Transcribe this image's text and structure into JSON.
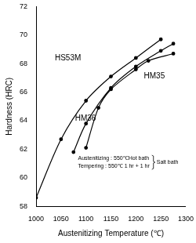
{
  "chart_data": {
    "type": "line",
    "x_label": "Austenitizing Temperature (℃)",
    "y_label": "Hardness (HRC)",
    "xlim": [
      1000,
      1300
    ],
    "xticks": [
      1000,
      1050,
      1100,
      1150,
      1200,
      1250,
      1300
    ],
    "ylim": [
      58,
      72
    ],
    "yticks": [
      58,
      60,
      62,
      64,
      66,
      68,
      70,
      72
    ],
    "grid": false,
    "annotations": [
      "Austenitizing : 550℃Hot bath",
      "Tempering : 550℃ 1 hr + 1 hr",
      "Salt bath"
    ],
    "series": [
      {
        "name": "HS53M",
        "color": "#000000",
        "marker": "circle",
        "line_style": "solid",
        "x": [
          1000,
          1050,
          1100,
          1150,
          1200,
          1250
        ],
        "values": [
          58.6,
          62.7,
          65.4,
          67.1,
          68.4,
          69.7
        ]
      },
      {
        "name": "HM35",
        "color": "#000000",
        "marker": "circle",
        "line_style": "solid",
        "x": [
          1075,
          1100,
          1150,
          1200,
          1250,
          1275
        ],
        "values": [
          61.8,
          63.8,
          66.3,
          67.8,
          68.9,
          69.4
        ]
      },
      {
        "name": "HM36",
        "color": "#000000",
        "marker": "circle",
        "line_style": "solid",
        "x": [
          1100,
          1125,
          1150,
          1200,
          1225,
          1275
        ],
        "values": [
          62.1,
          64.9,
          66.2,
          67.6,
          68.2,
          68.7
        ]
      }
    ]
  }
}
